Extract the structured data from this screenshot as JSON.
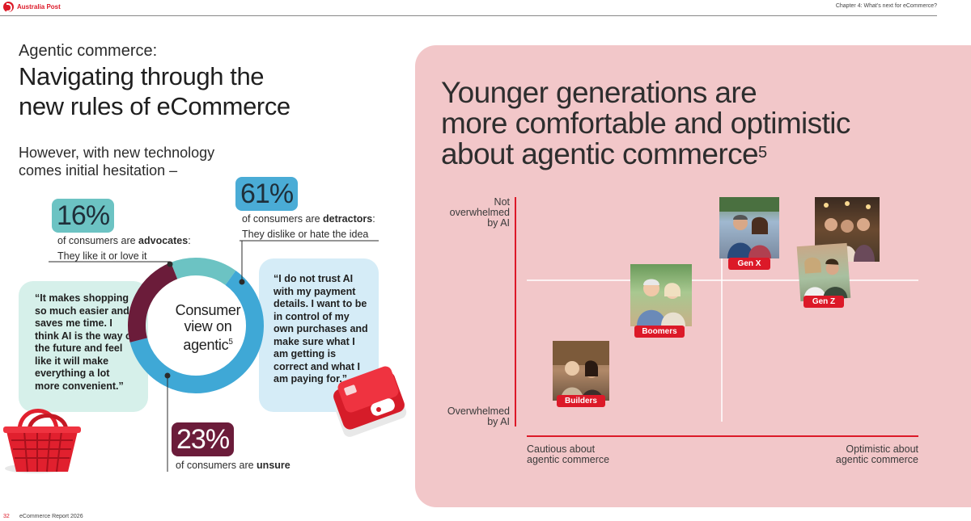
{
  "header": {
    "brand": "Australia Post",
    "chapter": "Chapter 4: What’s next for eCommerce?"
  },
  "left": {
    "subtitle": "Agentic commerce:",
    "title_line1": "Navigating through the",
    "title_line2": "new rules of eCommerce",
    "lead_line1": "However, with new technology",
    "lead_line2": "comes initial hesitation –",
    "donut_label_line1": "Consumer",
    "donut_label_line2": "view on",
    "donut_label_line3": "agentic",
    "donut_label_sup": "5",
    "segments": [
      {
        "name": "advocates",
        "value": 16,
        "color": "#6cc3c3"
      },
      {
        "name": "detractors",
        "value": 61,
        "color": "#3fa8d6"
      },
      {
        "name": "unsure",
        "value": 23,
        "color": "#6b1c3a"
      }
    ],
    "advocates": {
      "pct": "16%",
      "prefix": "of consumers are ",
      "keyword": "advocates",
      "suffix": ":",
      "line2": "They like it or love it"
    },
    "detractors": {
      "pct": "61%",
      "prefix": "of consumers are ",
      "keyword": "detractors",
      "suffix": ":",
      "line2": "They dislike or hate the idea"
    },
    "unsure": {
      "pct": "23%",
      "prefix": "of consumers are ",
      "keyword": "unsure"
    },
    "quote_advocate": "“It makes shopping so much easier and saves me time. I think AI is the way of the future and feel like it will make everything a lot more convenient.”",
    "quote_detractor": "“I do not trust AI with my payment details. I want to be in control of my own purchases and make sure what I am getting is correct and what I am paying for.”"
  },
  "right": {
    "title_line1": "Younger generations are",
    "title_line2": "more comfortable and optimistic",
    "title_line3": "about agentic commerce",
    "title_sup": "5",
    "y_top_line1": "Not",
    "y_top_line2": "overwhelmed",
    "y_top_line3": "by AI",
    "y_bottom_line1": "Overwhelmed",
    "y_bottom_line2": "by AI",
    "x_left_line1": "Cautious about",
    "x_left_line2": "agentic commerce",
    "x_right_line1": "Optimistic about",
    "x_right_line2": "agentic commerce",
    "generations": [
      {
        "label": "Builders"
      },
      {
        "label": "Boomers"
      },
      {
        "label": "Gen X"
      },
      {
        "label": "Gen Z"
      }
    ]
  },
  "footer": {
    "page": "32",
    "report": "eCommerce Report 2026"
  },
  "colors": {
    "brand_red": "#dc1928",
    "teal": "#6cc3c3",
    "blue": "#3fa8d6",
    "maroon": "#6b1c3a",
    "panel_pink": "#f2c7c9"
  }
}
